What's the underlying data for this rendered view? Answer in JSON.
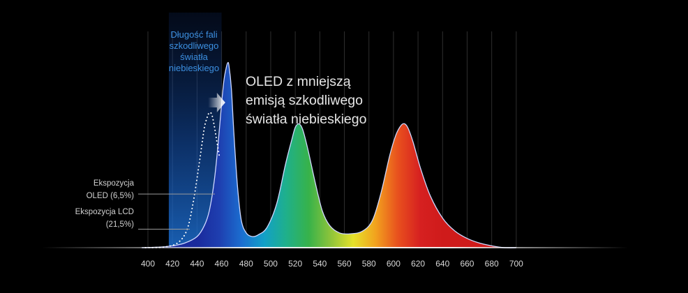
{
  "chart_data": {
    "type": "area",
    "title": "",
    "xlabel": "",
    "ylabel": "",
    "xlim": [
      392,
      712
    ],
    "ylim": [
      0,
      1
    ],
    "grid": true,
    "x_ticks": [
      400,
      420,
      440,
      460,
      480,
      500,
      520,
      540,
      560,
      580,
      600,
      620,
      640,
      660,
      680,
      700
    ],
    "highlight_band": {
      "range": [
        417,
        460
      ],
      "label": [
        "Długość fali",
        "szkodliwego",
        "światła",
        "niebieskiego"
      ],
      "color": "#1d6fd0"
    },
    "series": [
      {
        "line": "solid",
        "points": [
          [
            395,
            0.0
          ],
          [
            410,
            0.003
          ],
          [
            420,
            0.01
          ],
          [
            430,
            0.025
          ],
          [
            440,
            0.06
          ],
          [
            446,
            0.12
          ],
          [
            450,
            0.2
          ],
          [
            454,
            0.36
          ],
          [
            457,
            0.55
          ],
          [
            460,
            0.78
          ],
          [
            462,
            0.91
          ],
          [
            464,
            0.98
          ],
          [
            465,
            1.0
          ],
          [
            466,
            0.985
          ],
          [
            468,
            0.86
          ],
          [
            470,
            0.62
          ],
          [
            473,
            0.33
          ],
          [
            476,
            0.15
          ],
          [
            480,
            0.08
          ],
          [
            485,
            0.06
          ],
          [
            490,
            0.07
          ],
          [
            497,
            0.11
          ],
          [
            505,
            0.24
          ],
          [
            512,
            0.45
          ],
          [
            517,
            0.58
          ],
          [
            520,
            0.65
          ],
          [
            523,
            0.67
          ],
          [
            526,
            0.64
          ],
          [
            530,
            0.54
          ],
          [
            536,
            0.36
          ],
          [
            542,
            0.2
          ],
          [
            548,
            0.12
          ],
          [
            556,
            0.08
          ],
          [
            565,
            0.075
          ],
          [
            575,
            0.09
          ],
          [
            583,
            0.15
          ],
          [
            590,
            0.3
          ],
          [
            597,
            0.5
          ],
          [
            602,
            0.61
          ],
          [
            606,
            0.66
          ],
          [
            609,
            0.67
          ],
          [
            612,
            0.645
          ],
          [
            616,
            0.57
          ],
          [
            622,
            0.43
          ],
          [
            630,
            0.28
          ],
          [
            640,
            0.16
          ],
          [
            650,
            0.09
          ],
          [
            660,
            0.05
          ],
          [
            670,
            0.025
          ],
          [
            680,
            0.01
          ],
          [
            690,
            0.0
          ],
          [
            700,
            0.0
          ]
        ]
      },
      {
        "line": "dotted",
        "points": [
          [
            398,
            0.0
          ],
          [
            415,
            0.005
          ],
          [
            425,
            0.03
          ],
          [
            432,
            0.1
          ],
          [
            437,
            0.25
          ],
          [
            441,
            0.42
          ],
          [
            444,
            0.56
          ],
          [
            446,
            0.65
          ],
          [
            448,
            0.7
          ],
          [
            450,
            0.73
          ],
          [
            452,
            0.72
          ],
          [
            454,
            0.66
          ],
          [
            456,
            0.58
          ],
          [
            458,
            0.5
          ]
        ]
      }
    ],
    "annotations": [
      {
        "id": "headline",
        "text": [
          "OLED z mniejszą",
          "emisją szkodliwego",
          "światła niebieskiego"
        ],
        "arrow_from_x": 449,
        "arrow_to_x": 463
      },
      {
        "id": "oled-exposure",
        "text": [
          "Ekspozycja",
          "OLED (6,5%)"
        ],
        "pointer_y": 0.29
      },
      {
        "id": "lcd-exposure",
        "text": [
          "Ekspozycja LCD",
          "(21,5%)"
        ],
        "pointer_y": 0.1
      }
    ],
    "colors": {
      "background": "#000000",
      "grid": "#2e2e2e",
      "curve_outline": "#cfd8ff",
      "spectrum": [
        "#1a2a9c",
        "#1e3fb0",
        "#1b6ed0",
        "#12a0c8",
        "#1fb08a",
        "#37b24a",
        "#8ec43a",
        "#e6e22a",
        "#f2a21e",
        "#e8501e",
        "#d62020",
        "#cf1b1b"
      ],
      "tick_label": "#d8d8d8"
    }
  }
}
